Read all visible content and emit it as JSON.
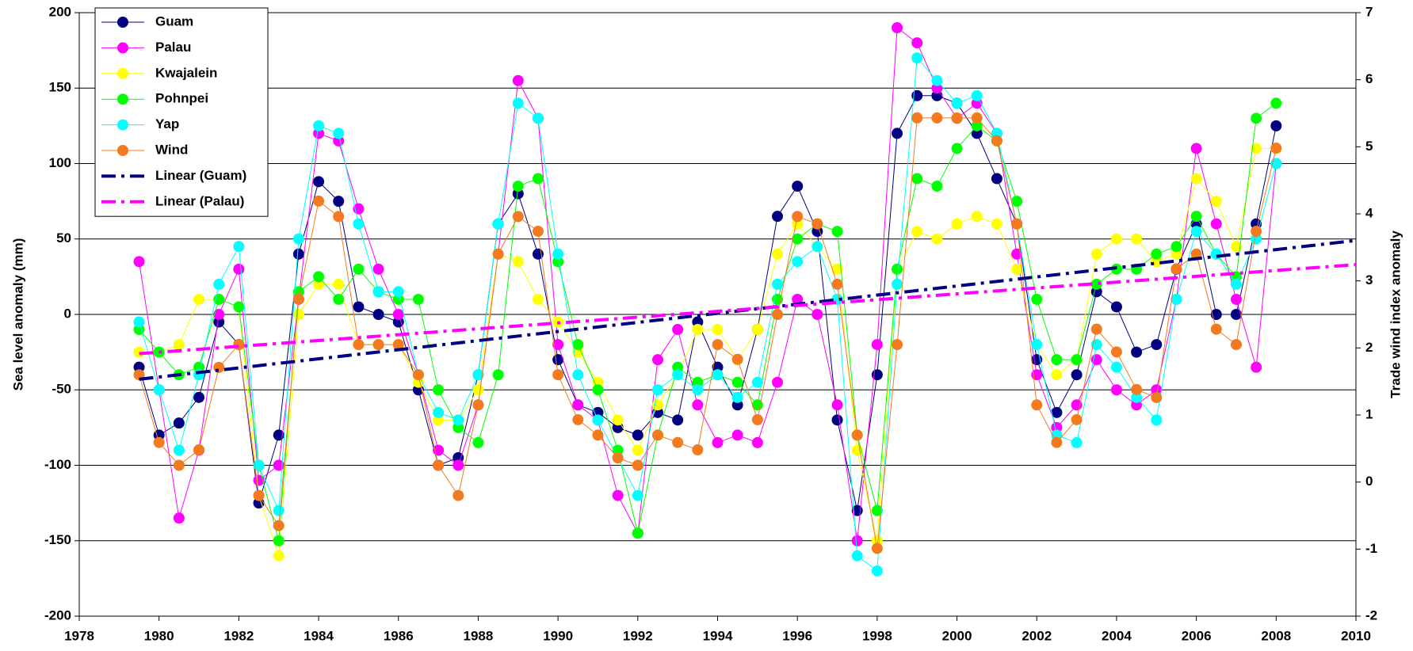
{
  "chart_data": {
    "type": "line",
    "markers": true,
    "grid": true,
    "legend": "upper-left",
    "ylabel": "Sea level anomaly (mm)",
    "y2label": "Trade wind index anomaly",
    "xlim": [
      1978,
      2010
    ],
    "xticks": [
      1978,
      1980,
      1982,
      1984,
      1986,
      1988,
      1990,
      1992,
      1994,
      1996,
      1998,
      2000,
      2002,
      2004,
      2006,
      2008,
      2010
    ],
    "ylim": [
      -200,
      200
    ],
    "yticks": [
      -200,
      -150,
      -100,
      -50,
      0,
      50,
      100,
      150,
      200
    ],
    "y2lim": [
      -2,
      7
    ],
    "y2ticks": [
      -2,
      -1,
      0,
      1,
      2,
      3,
      4,
      5,
      6,
      7
    ],
    "x": [
      1979.5,
      1980,
      1980.5,
      1981,
      1981.5,
      1982,
      1982.5,
      1983,
      1983.5,
      1984,
      1984.5,
      1985,
      1985.5,
      1986,
      1986.5,
      1987,
      1987.5,
      1988,
      1988.5,
      1989,
      1989.5,
      1990,
      1990.5,
      1991,
      1991.5,
      1992,
      1992.5,
      1993,
      1993.5,
      1994,
      1994.5,
      1995,
      1995.5,
      1996,
      1996.5,
      1997,
      1997.5,
      1998,
      1998.5,
      1999,
      1999.5,
      2000,
      2000.5,
      2001,
      2001.5,
      2002,
      2002.5,
      2003,
      2003.5,
      2004,
      2004.5,
      2005,
      2005.5,
      2006,
      2006.5,
      2007,
      2007.5,
      2008
    ],
    "series": [
      {
        "name": "Guam",
        "color": "#000080",
        "values": [
          -35,
          -80,
          -72,
          -55,
          -5,
          -20,
          -125,
          -80,
          40,
          88,
          75,
          5,
          0,
          -5,
          -50,
          -100,
          -95,
          -40,
          60,
          80,
          40,
          -30,
          -60,
          -65,
          -75,
          -80,
          -65,
          -70,
          -5,
          -35,
          -60,
          -10,
          65,
          85,
          55,
          -70,
          -130,
          -40,
          120,
          145,
          145,
          140,
          120,
          90,
          60,
          -30,
          -65,
          -40,
          15,
          5,
          -25,
          -20,
          30,
          60,
          0,
          0,
          60,
          125
        ]
      },
      {
        "name": "Palau",
        "color": "#ff00ff",
        "values": [
          35,
          -50,
          -135,
          -90,
          0,
          30,
          -110,
          -100,
          10,
          120,
          115,
          70,
          30,
          0,
          -40,
          -90,
          -100,
          -60,
          40,
          155,
          130,
          -20,
          -60,
          -70,
          -120,
          -145,
          -30,
          -10,
          -60,
          -85,
          -80,
          -85,
          -45,
          10,
          0,
          -60,
          -150,
          -20,
          190,
          180,
          150,
          130,
          140,
          120,
          40,
          -40,
          -75,
          -60,
          -30,
          -50,
          -60,
          -50,
          10,
          110,
          60,
          10,
          -35,
          100
        ]
      },
      {
        "name": "Kwajalein",
        "color": "#ffff00",
        "values": [
          -25,
          -25,
          -20,
          10,
          10,
          5,
          -120,
          -160,
          0,
          20,
          20,
          -20,
          -20,
          -20,
          -45,
          -70,
          -70,
          -50,
          40,
          35,
          10,
          -5,
          -25,
          -45,
          -70,
          -90,
          -60,
          -40,
          -10,
          -10,
          -30,
          -10,
          40,
          60,
          45,
          30,
          -90,
          -150,
          30,
          55,
          50,
          60,
          65,
          60,
          30,
          -20,
          -40,
          -30,
          40,
          50,
          50,
          35,
          40,
          90,
          75,
          45,
          110,
          110
        ]
      },
      {
        "name": "Pohnpei",
        "color": "#00ff00",
        "values": [
          -10,
          -25,
          -40,
          -35,
          10,
          5,
          -100,
          -150,
          15,
          25,
          10,
          30,
          15,
          10,
          10,
          -50,
          -75,
          -85,
          -40,
          85,
          90,
          35,
          -20,
          -50,
          -90,
          -145,
          -80,
          -35,
          -45,
          -40,
          -45,
          -60,
          10,
          50,
          60,
          55,
          -80,
          -130,
          30,
          90,
          85,
          110,
          125,
          115,
          75,
          10,
          -30,
          -30,
          20,
          30,
          30,
          40,
          45,
          65,
          40,
          25,
          130,
          140
        ]
      },
      {
        "name": "Yap",
        "color": "#00ffff",
        "values": [
          -5,
          -50,
          -90,
          -40,
          20,
          45,
          -100,
          -130,
          50,
          125,
          120,
          60,
          15,
          15,
          -40,
          -65,
          -70,
          -40,
          60,
          140,
          130,
          40,
          -40,
          -70,
          -95,
          -120,
          -50,
          -40,
          -50,
          -40,
          -55,
          -45,
          20,
          35,
          45,
          10,
          -160,
          -170,
          20,
          170,
          155,
          140,
          145,
          120,
          60,
          -20,
          -80,
          -85,
          -20,
          -35,
          -55,
          -70,
          10,
          55,
          40,
          20,
          50,
          100
        ]
      },
      {
        "name": "Wind",
        "color": "#f47a20",
        "axis": "y2",
        "values": [
          1.6,
          0.59,
          0.25,
          0.48,
          1.71,
          2.05,
          -0.2,
          -0.65,
          2.73,
          4.19,
          3.96,
          2.05,
          2.05,
          2.05,
          1.6,
          0.25,
          -0.2,
          1.15,
          3.4,
          3.96,
          3.74,
          1.6,
          0.93,
          0.7,
          0.36,
          0.25,
          0.7,
          0.59,
          0.48,
          2.05,
          1.83,
          0.93,
          2.5,
          3.96,
          3.85,
          2.95,
          0.7,
          -0.99,
          2.05,
          5.43,
          5.43,
          5.43,
          5.43,
          5.09,
          3.85,
          1.15,
          0.59,
          0.93,
          2.28,
          1.94,
          1.38,
          1.26,
          3.18,
          3.4,
          2.28,
          2.05,
          3.74,
          4.98
        ]
      }
    ],
    "trendlines": [
      {
        "name": "Linear (Guam)",
        "color": "#000080",
        "x": [
          1979.5,
          2010
        ],
        "values": [
          -43,
          49
        ]
      },
      {
        "name": "Linear (Palau)",
        "color": "#ff00ff",
        "x": [
          1979.5,
          2010
        ],
        "values": [
          -26,
          33
        ]
      }
    ]
  }
}
